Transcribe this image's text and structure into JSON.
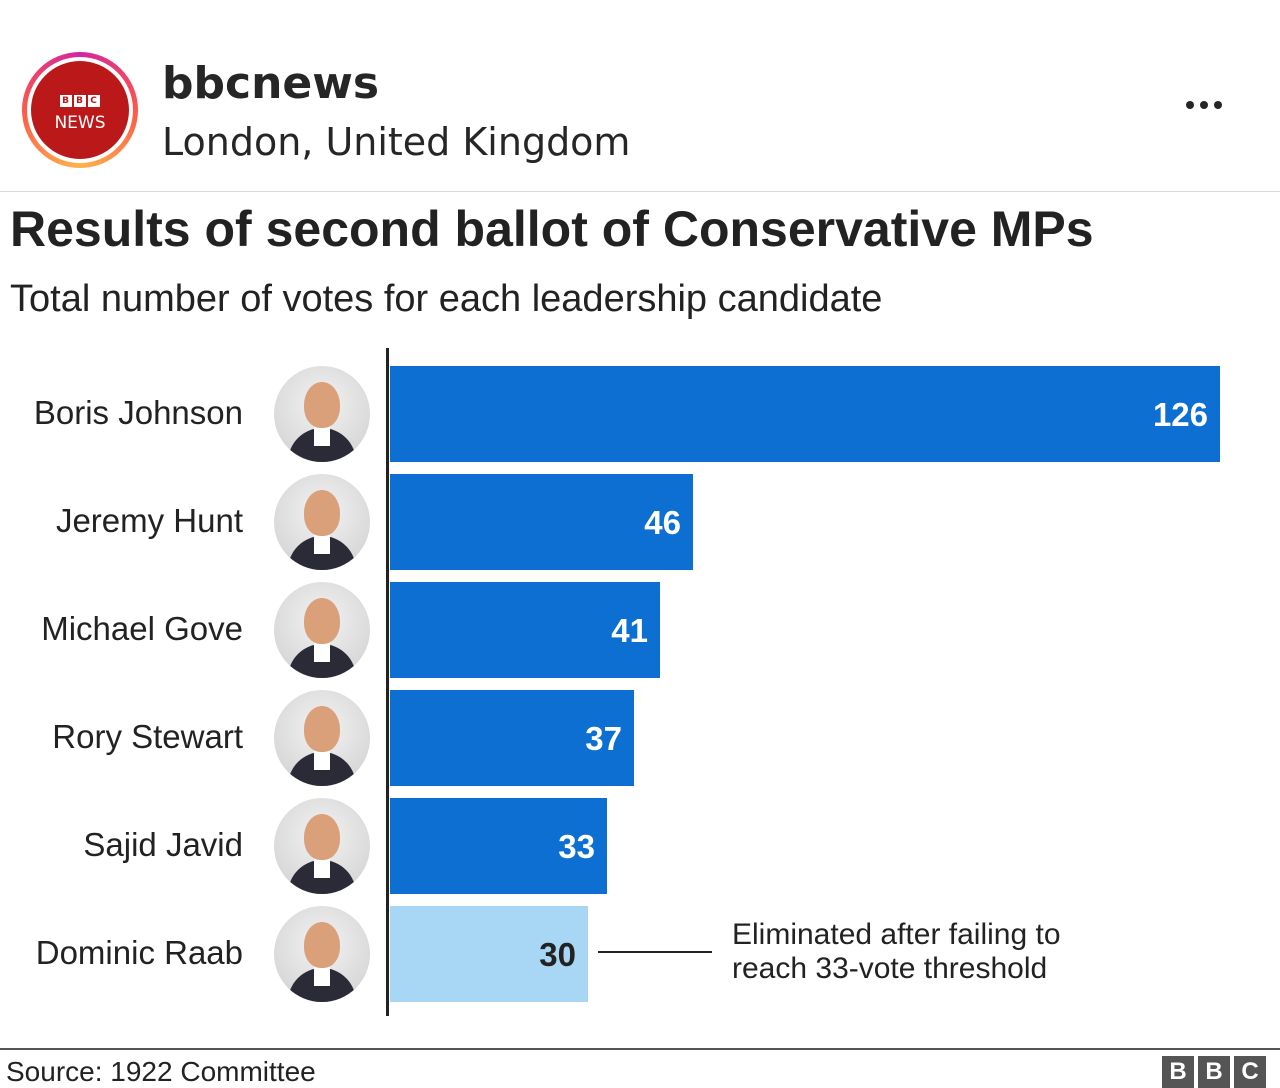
{
  "post": {
    "username": "bbcnews",
    "location": "London, United Kingdom",
    "avatar_letters": [
      "B",
      "B",
      "C"
    ],
    "avatar_text": "NEWS",
    "more_icon": "more-horizontal-icon"
  },
  "chart_data": {
    "type": "bar",
    "orientation": "horizontal",
    "title": "Results of second ballot of Conservative MPs",
    "subtitle": "Total number of votes for each leadership candidate",
    "categories": [
      "Boris Johnson",
      "Jeremy Hunt",
      "Michael Gove",
      "Rory Stewart",
      "Sajid Javid",
      "Dominic Raab"
    ],
    "values": [
      126,
      46,
      41,
      37,
      33,
      30
    ],
    "value_labels": [
      "126",
      "46",
      "41",
      "37",
      "33",
      "30"
    ],
    "colors": [
      "#0d6fd1",
      "#0d6fd1",
      "#0d6fd1",
      "#0d6fd1",
      "#0d6fd1",
      "#a8d6f5"
    ],
    "xlim": [
      0,
      126
    ],
    "grid": false,
    "annotation": {
      "category": "Dominic Raab",
      "line1": "Eliminated after failing to",
      "line2": "reach 33-vote threshold"
    },
    "source": "Source: 1922 Committee"
  },
  "footer": {
    "logo_letters": [
      "B",
      "B",
      "C"
    ]
  }
}
